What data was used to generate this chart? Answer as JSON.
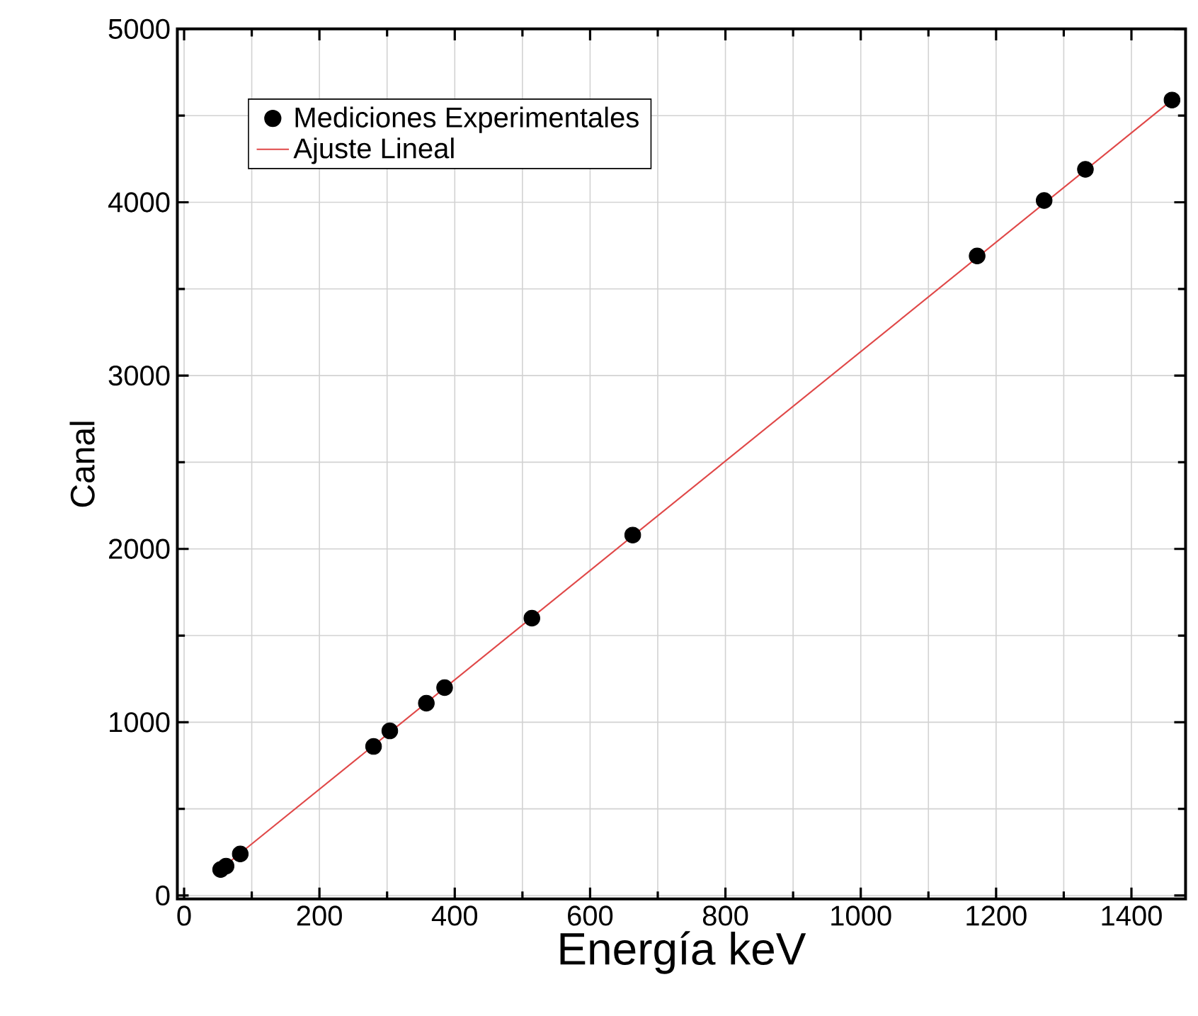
{
  "chart_data": {
    "type": "scatter",
    "xlabel": "Energía keV",
    "ylabel": "Canal",
    "xlim": [
      -10,
      1480
    ],
    "ylim": [
      -20,
      5000
    ],
    "xticks": [
      0,
      200,
      400,
      600,
      800,
      1000,
      1200,
      1400
    ],
    "yticks": [
      0,
      1000,
      2000,
      3000,
      4000,
      5000
    ],
    "grid": true,
    "legend": "top left",
    "series": [
      {
        "name": "Mediciones Experimentales",
        "color": "#000000",
        "x": [
          54,
          62,
          83,
          280,
          304,
          358,
          385,
          514,
          663,
          1172,
          1271,
          1332,
          1460
        ],
        "values": [
          150,
          170,
          240,
          860,
          950,
          1110,
          1200,
          1600,
          2080,
          3690,
          4010,
          4190,
          4590
        ]
      },
      {
        "name": "Ajuste Lineal",
        "type": "line",
        "line_style": "solid",
        "color": "#e04848",
        "x": [
          50,
          1460
        ],
        "values": [
          140,
          4590
        ]
      }
    ]
  }
}
